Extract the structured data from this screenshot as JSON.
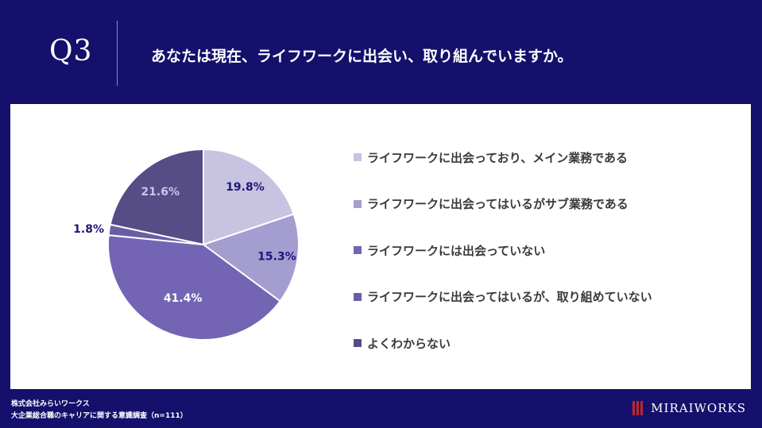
{
  "header": {
    "q_number": "Q3",
    "question": "あなたは現在、ライフワークに出会い、取り組んでいますか。"
  },
  "chart_data": {
    "type": "pie",
    "categories": [
      "ライフワークに出会っており、メイン業務である",
      "ライフワークに出会ってはいるがサブ業務である",
      "ライフワークには出会っていない",
      "ライフワークに出会ってはいるが、取り組めていない",
      "よくわからない"
    ],
    "values": [
      19.8,
      15.3,
      41.4,
      1.8,
      21.6
    ],
    "labels": [
      "19.8%",
      "15.3%",
      "41.4%",
      "1.8%",
      "21.6%"
    ],
    "colors": [
      "#c7c3e0",
      "#a49dcf",
      "#7365b4",
      "#6a5ca5",
      "#564c86"
    ],
    "label_colors": [
      "#1f1778",
      "#1f1778",
      "#ffffff",
      "#1f1778",
      "#c9c4ec"
    ],
    "legend_position": "right"
  },
  "footer": {
    "company": "株式会社みらいワークス",
    "survey": "大企業総合職のキャリアに関する意識調査（n=111）",
    "logo_text": "MIRAIWORKS"
  }
}
